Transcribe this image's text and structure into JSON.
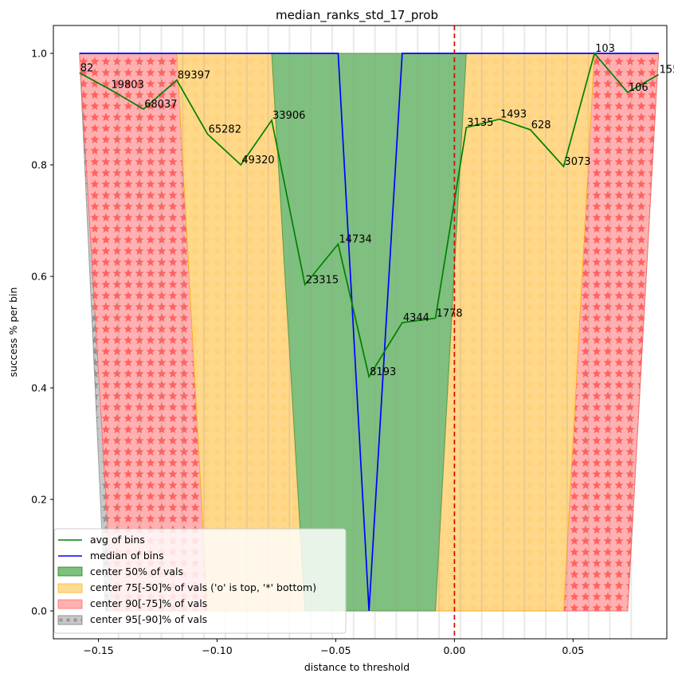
{
  "chart_data": {
    "type": "line",
    "title": "median_ranks_std_17_prob",
    "xlabel": "distance to threshold",
    "ylabel": "success % per bin",
    "xlim": [
      -0.169,
      0.0895
    ],
    "ylim": [
      -0.05,
      1.05
    ],
    "x_ticks": [
      -0.15,
      -0.1,
      -0.05,
      0.0,
      0.05
    ],
    "x_tick_labels": [
      "−0.15",
      "−0.10",
      "−0.05",
      "0.00",
      "0.05"
    ],
    "y_ticks": [
      0.0,
      0.2,
      0.4,
      0.6,
      0.8,
      1.0
    ],
    "y_tick_labels": [
      "0.0",
      "0.2",
      "0.4",
      "0.6",
      "0.8",
      "1.0"
    ],
    "threshold_x": 0.0,
    "bin_edges": [
      -0.1415,
      -0.1325,
      -0.1235,
      -0.1145,
      -0.1055,
      -0.0965,
      -0.0875,
      -0.0785,
      -0.0695,
      -0.0605,
      -0.0515,
      -0.0425,
      -0.0335,
      -0.0245,
      -0.0155,
      -0.0065,
      0.0025,
      0.0115,
      0.0205,
      0.0295,
      0.0385,
      0.0475,
      0.0565,
      0.0655,
      0.0745
    ],
    "avg_series": {
      "name": "avg of bins",
      "color": "#008000",
      "x": [
        -0.158,
        -0.145,
        -0.131,
        -0.117,
        -0.104,
        -0.09,
        -0.077,
        -0.063,
        -0.049,
        -0.036,
        -0.022,
        -0.008,
        0.005,
        0.019,
        0.032,
        0.046,
        0.059,
        0.073,
        0.086
      ],
      "y": [
        0.965,
        0.935,
        0.9,
        0.952,
        0.855,
        0.8,
        0.88,
        0.585,
        0.658,
        0.42,
        0.517,
        0.525,
        0.867,
        0.882,
        0.863,
        0.797,
        1.0,
        0.93,
        0.962
      ],
      "labels": [
        "82",
        "19803",
        "68037",
        "89397",
        "65282",
        "49320",
        "33906",
        "23315",
        "14734",
        "8193",
        "4344",
        "1778",
        "3135",
        "1493",
        "628",
        "3073",
        "103",
        "106",
        "155"
      ]
    },
    "median_series": {
      "name": "median of bins",
      "color": "#0000ff",
      "x": [
        -0.158,
        -0.049,
        -0.036,
        -0.022,
        0.086
      ],
      "y": [
        1.0,
        1.0,
        0.0,
        1.0,
        1.0
      ]
    },
    "bands": [
      {
        "name": "center 95[-90]% of vals",
        "color": "#808080",
        "left_bottom_x": -0.147,
        "left_top_x": -0.158,
        "right_top_x": 0.086,
        "right_bottom_x": 0.073
      },
      {
        "name": "center 90[-75]% of vals",
        "color": "#ff0000",
        "left_bottom_x": -0.144,
        "left_top_x": -0.158,
        "right_top_x": 0.086,
        "right_bottom_x": 0.073
      },
      {
        "name": "center 75[-50]% of vals ('o' is top, '*' bottom)",
        "color": "#ffa500",
        "left_bottom_x": -0.104,
        "left_top_x": -0.117,
        "right_top_x": 0.059,
        "right_bottom_x": 0.046
      },
      {
        "name": "center 50% of vals",
        "color": "#008000",
        "left_bottom_x": -0.063,
        "left_top_x": -0.077,
        "right_top_x": 0.005,
        "right_bottom_x": -0.008
      }
    ],
    "legend": [
      "avg of bins",
      "median of bins",
      "center 50% of vals",
      "center 75[-50]% of vals ('o' is top, '*' bottom)",
      "center 90[-75]% of vals",
      "center 95[-90]% of vals"
    ],
    "legend_position": "lower-left",
    "grid": false
  }
}
